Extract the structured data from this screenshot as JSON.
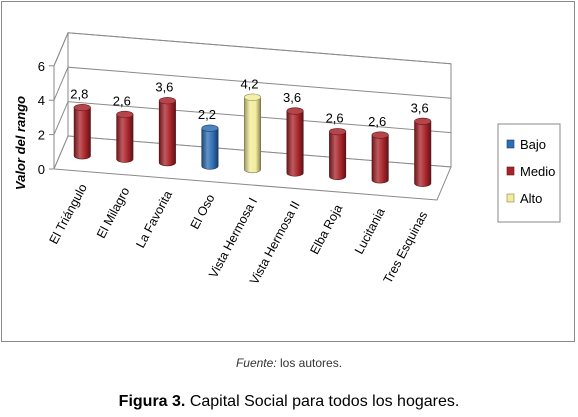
{
  "chart_data": {
    "type": "bar",
    "style": "3d-cylinder",
    "categories": [
      "El Triángulo",
      "El Milagro",
      "La Favorita",
      "El Oso",
      "Vista Hermosa I",
      "Vista Hermosa II",
      "Elba Roja",
      "Lucitania",
      "Tres Esquinas"
    ],
    "values": [
      2.8,
      2.6,
      3.6,
      2.2,
      4.2,
      3.6,
      2.6,
      2.6,
      3.6
    ],
    "value_labels": [
      "2,8",
      "2,6",
      "3,6",
      "2,2",
      "4,2",
      "3,6",
      "2,6",
      "2,6",
      "3,6"
    ],
    "levels": [
      "Medio",
      "Medio",
      "Medio",
      "Bajo",
      "Alto",
      "Medio",
      "Medio",
      "Medio",
      "Medio"
    ],
    "ylabel": "Valor del rango",
    "ylim": [
      0,
      6
    ],
    "yticks": [
      0,
      2,
      4,
      6
    ],
    "legend": {
      "position": "right",
      "items": [
        {
          "name": "Bajo",
          "color": "#2e6db4"
        },
        {
          "name": "Medio",
          "color": "#a8242a"
        },
        {
          "name": "Alto",
          "color": "#f2ec9a"
        }
      ]
    },
    "grid": true
  },
  "source": {
    "label": "Fuente:",
    "text": "los autores."
  },
  "caption": {
    "label": "Figura 3.",
    "text": "Capital Social para todos los hogares."
  }
}
